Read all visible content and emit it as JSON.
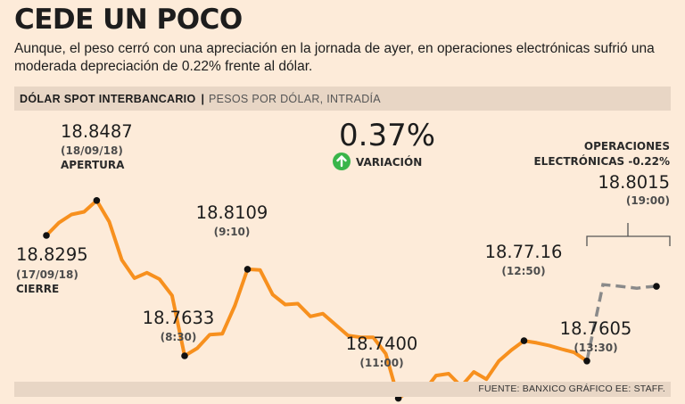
{
  "header": {
    "title": "CEDE UN POCO",
    "subtitle": "Aunque, el peso cerró con una apreciación en la jornada de ayer, en operaciones electrónicas sufrió una moderada depreciación de 0.22% frente al dólar."
  },
  "bar": {
    "label_bold": "DÓLAR SPOT INTERBANCARIO",
    "separator": "|",
    "label_light": "PESOS POR DÓLAR, INTRADÍA"
  },
  "footer": {
    "source": "FUENTE: BANXICO GRÁFICO EE: STAFF."
  },
  "colors": {
    "line": "#f7901e",
    "dashed": "#8a8a8a",
    "marker": "#111111",
    "arrow": "#39b54a",
    "background": "#fdebd9"
  },
  "chart_data": {
    "type": "line",
    "title": "DÓLAR SPOT INTERBANCARIO",
    "ylabel": "PESOS POR DÓLAR, INTRADÍA",
    "ylim": [
      18.73,
      18.86
    ],
    "series": [
      {
        "name": "Intradía",
        "values": [
          18.8295,
          18.8365,
          18.841,
          18.8425,
          18.8487,
          18.837,
          18.816,
          18.806,
          18.809,
          18.8055,
          18.7965,
          18.7633,
          18.7675,
          18.775,
          18.7755,
          18.791,
          18.8109,
          18.8105,
          18.797,
          18.7915,
          18.792,
          18.785,
          18.7865,
          18.7805,
          18.7745,
          18.7735,
          18.7735,
          18.7645,
          18.74,
          18.7445,
          18.7435,
          18.7525,
          18.7535,
          18.7465,
          18.7545,
          18.7505,
          18.7605,
          18.7665,
          18.7716,
          18.7705,
          18.769,
          18.767,
          18.7652,
          18.7605
        ]
      },
      {
        "name": "Operaciones electrónicas",
        "style": "dashed",
        "values": [
          18.7605,
          18.8025,
          18.8015,
          18.8005,
          18.8012,
          18.8015
        ]
      }
    ],
    "variation": {
      "value": "0.37%",
      "direction": "up",
      "label": "VARIACIÓN"
    },
    "bracket_label": [
      "OPERACIONES",
      "ELECTRÓNICAS -0.22%"
    ],
    "annotations": [
      {
        "idx": 0,
        "value": "18.8295",
        "sub": "(17/09/18)",
        "tag": "CIERRE"
      },
      {
        "idx": 4,
        "value": "18.8487",
        "sub": "(18/09/18)",
        "tag": "APERTURA"
      },
      {
        "idx": 11,
        "value": "18.7633",
        "sub": "(8:30)"
      },
      {
        "idx": 16,
        "value": "18.8109",
        "sub": "(9:10)"
      },
      {
        "idx": 28,
        "value": "18.7400",
        "sub": "(11:00)"
      },
      {
        "idx": 38,
        "value": "18.77.16",
        "sub": "(12:50)"
      },
      {
        "idx": 43,
        "value": "18.7605",
        "sub": "(13:30)"
      },
      {
        "idx": 5,
        "series": 1,
        "value": "18.8015",
        "sub": "(19:00)"
      }
    ]
  }
}
